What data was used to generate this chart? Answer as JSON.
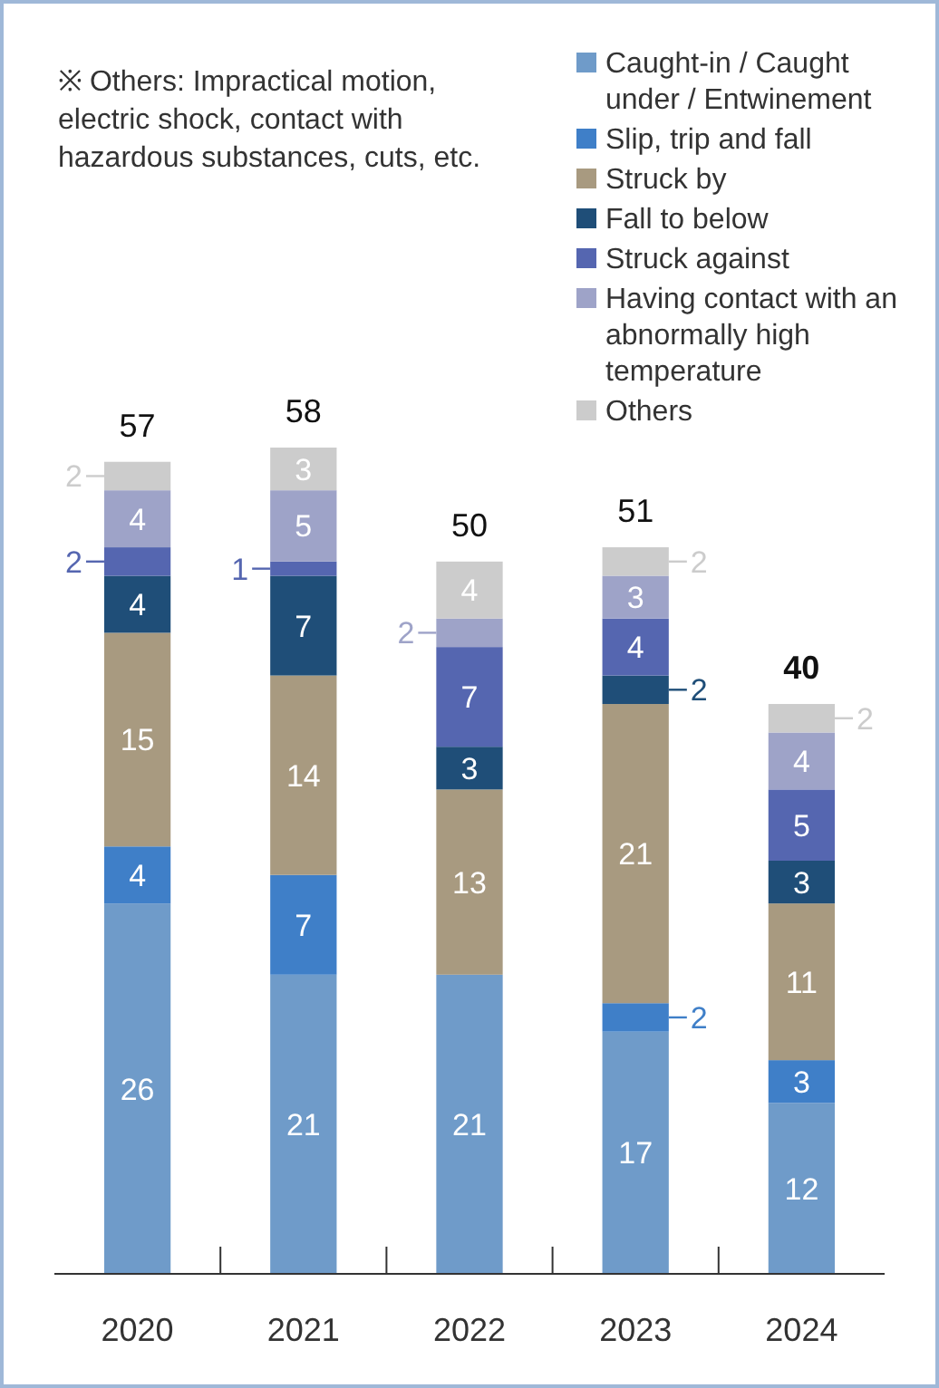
{
  "chart_data": {
    "type": "bar",
    "stacked": true,
    "data_labels": true,
    "legend": "top right",
    "categories": [
      "2020",
      "2021",
      "2022",
      "2023",
      "2024"
    ],
    "series": [
      {
        "name": "Caught-in / Caught under / Entwinement",
        "color": "#6f9bc9",
        "values": [
          26,
          21,
          21,
          17,
          12
        ]
      },
      {
        "name": "Slip, trip and fall",
        "color": "#3f7fc8",
        "values": [
          4,
          7,
          null,
          2,
          3
        ]
      },
      {
        "name": "Struck by",
        "color": "#a89a80",
        "values": [
          15,
          14,
          13,
          21,
          11
        ]
      },
      {
        "name": "Fall to below",
        "color": "#1f4e78",
        "values": [
          4,
          7,
          3,
          2,
          3
        ]
      },
      {
        "name": "Struck against",
        "color": "#5566b0",
        "values": [
          2,
          1,
          7,
          4,
          5
        ]
      },
      {
        "name": "Having contact with an abnormally high temperature",
        "color": "#9ea3c8",
        "values": [
          4,
          5,
          2,
          3,
          4
        ]
      },
      {
        "name": "Others",
        "color": "#cccccc",
        "values": [
          2,
          3,
          4,
          2,
          2
        ]
      }
    ],
    "totals": [
      "57",
      "58",
      "50",
      "51",
      "40"
    ],
    "annotations": [
      "※ Others: Impractical motion, electric shock, contact with hazardous substances, cuts, etc."
    ]
  }
}
